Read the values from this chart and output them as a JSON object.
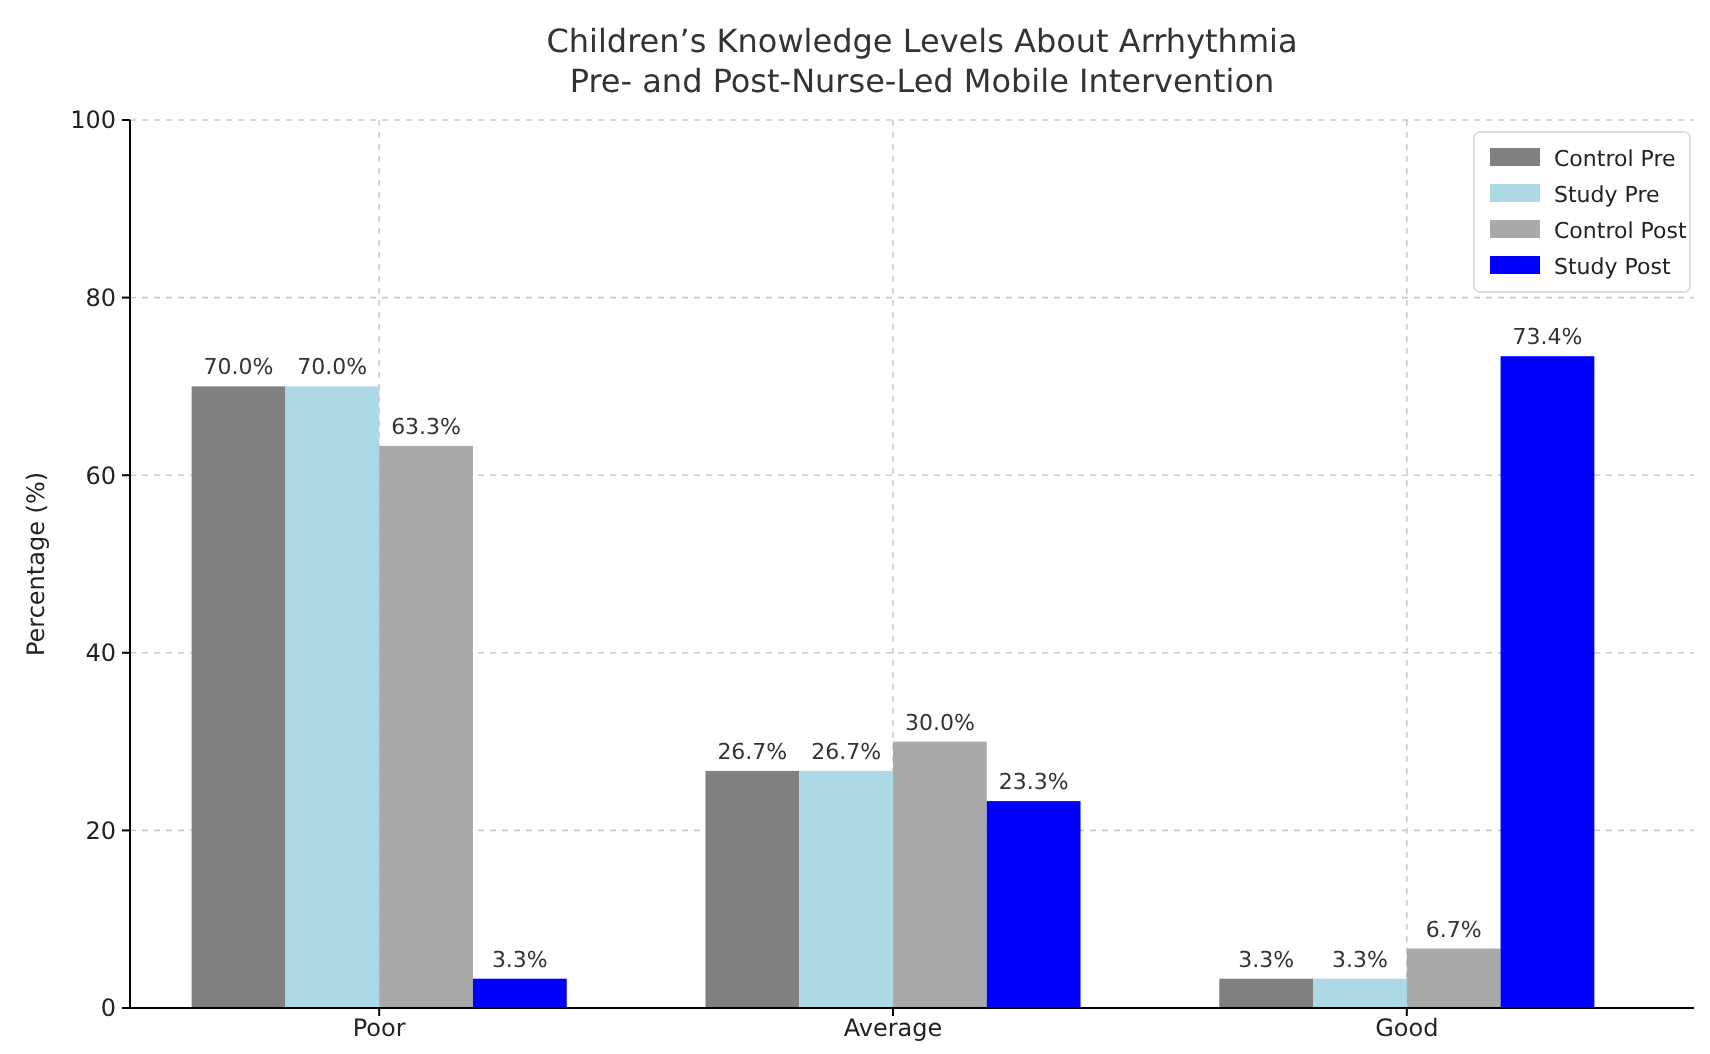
{
  "chart_data": {
    "type": "bar",
    "title": "Children’s Knowledge Levels About Arrhythmia\nPre- and Post-Nurse-Led Mobile Intervention",
    "ylabel": "Percentage (%)",
    "categories": [
      "Poor",
      "Average",
      "Good"
    ],
    "series": [
      {
        "name": "Control Pre",
        "color": "#808080",
        "values": [
          70.0,
          26.7,
          3.3
        ],
        "value_labels": [
          "70.0%",
          "26.7%",
          "3.3%"
        ]
      },
      {
        "name": "Study Pre",
        "color": "#add8e6",
        "values": [
          70.0,
          26.7,
          3.3
        ],
        "value_labels": [
          "70.0%",
          "26.7%",
          "3.3%"
        ]
      },
      {
        "name": "Control Post",
        "color": "#a9a9a9",
        "values": [
          63.3,
          30.0,
          6.7
        ],
        "value_labels": [
          "63.3%",
          "30.0%",
          "6.7%"
        ]
      },
      {
        "name": "Study Post",
        "color": "#0000ff",
        "values": [
          3.3,
          23.3,
          73.4
        ],
        "value_labels": [
          "3.3%",
          "23.3%",
          "73.4%"
        ]
      }
    ],
    "ylim": [
      0,
      100
    ],
    "yticks": [
      0,
      20,
      40,
      60,
      80,
      100
    ],
    "grid": true,
    "legend": "top right"
  }
}
